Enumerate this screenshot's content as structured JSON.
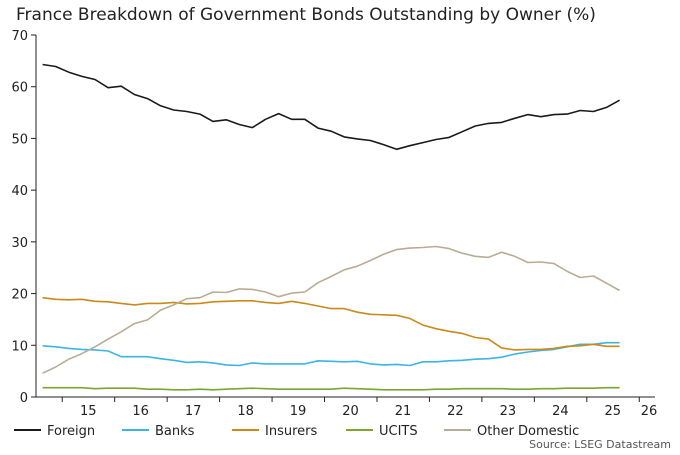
{
  "chart_data": {
    "type": "line",
    "title": "France Breakdown of Government Bonds Outstanding by Owner (%)",
    "source": "Source: LSEG Datastream",
    "xlabel": "",
    "ylabel": "",
    "ylim": [
      0,
      70
    ],
    "yticks": [
      0,
      10,
      20,
      30,
      40,
      50,
      60,
      70
    ],
    "xlim": [
      2014.5,
      2026.3
    ],
    "xticks": [
      {
        "label": "15",
        "value": 2015
      },
      {
        "label": "16",
        "value": 2016
      },
      {
        "label": "17",
        "value": 2017
      },
      {
        "label": "18",
        "value": 2018
      },
      {
        "label": "19",
        "value": 2019
      },
      {
        "label": "20",
        "value": 2020
      },
      {
        "label": "21",
        "value": 2021
      },
      {
        "label": "22",
        "value": 2022
      },
      {
        "label": "23",
        "value": 2023
      },
      {
        "label": "24",
        "value": 2024
      },
      {
        "label": "25",
        "value": 2025
      },
      {
        "label": "26",
        "value": 2026
      }
    ],
    "grid": false,
    "legend_position": "bottom",
    "x": [
      2014.625,
      2014.875,
      2015.125,
      2015.375,
      2015.625,
      2015.875,
      2016.125,
      2016.375,
      2016.625,
      2016.875,
      2017.125,
      2017.375,
      2017.625,
      2017.875,
      2018.125,
      2018.375,
      2018.625,
      2018.875,
      2019.125,
      2019.375,
      2019.625,
      2019.875,
      2020.125,
      2020.375,
      2020.625,
      2020.875,
      2021.125,
      2021.375,
      2021.625,
      2021.875,
      2022.125,
      2022.375,
      2022.625,
      2022.875,
      2023.125,
      2023.375,
      2023.625,
      2023.875,
      2024.125,
      2024.375,
      2024.625,
      2024.875,
      2025.125,
      2025.375,
      2025.625
    ],
    "series": [
      {
        "name": "Foreign",
        "color": "#1a1a1a",
        "values": [
          64.3,
          63.9,
          62.8,
          62.0,
          61.4,
          59.8,
          60.1,
          58.5,
          57.7,
          56.3,
          55.5,
          55.2,
          54.7,
          53.3,
          53.6,
          52.7,
          52.1,
          53.7,
          54.8,
          53.7,
          53.7,
          52.0,
          51.4,
          50.3,
          49.9,
          49.6,
          48.8,
          47.9,
          48.6,
          49.2,
          49.8,
          50.2,
          51.3,
          52.4,
          52.9,
          53.1,
          53.9,
          54.6,
          54.2,
          54.6,
          54.7,
          55.4,
          55.2,
          56.0,
          57.4
        ]
      },
      {
        "name": "Banks",
        "color": "#3db4e6",
        "values": [
          9.9,
          9.7,
          9.4,
          9.2,
          9.1,
          8.9,
          7.8,
          7.8,
          7.8,
          7.4,
          7.1,
          6.7,
          6.8,
          6.6,
          6.2,
          6.1,
          6.6,
          6.4,
          6.4,
          6.4,
          6.4,
          7.0,
          6.9,
          6.8,
          6.9,
          6.4,
          6.2,
          6.3,
          6.1,
          6.8,
          6.8,
          7.0,
          7.1,
          7.3,
          7.4,
          7.7,
          8.3,
          8.7,
          9.0,
          9.2,
          9.7,
          10.2,
          10.2,
          10.5,
          10.5
        ]
      },
      {
        "name": "Insurers",
        "color": "#c98a1a",
        "values": [
          19.2,
          18.9,
          18.8,
          18.9,
          18.5,
          18.4,
          18.1,
          17.8,
          18.1,
          18.1,
          18.3,
          18.0,
          18.1,
          18.4,
          18.5,
          18.6,
          18.6,
          18.3,
          18.1,
          18.5,
          18.1,
          17.6,
          17.1,
          17.1,
          16.4,
          16.0,
          15.9,
          15.8,
          15.2,
          13.9,
          13.2,
          12.7,
          12.3,
          11.5,
          11.2,
          9.5,
          9.1,
          9.2,
          9.2,
          9.4,
          9.8,
          9.9,
          10.2,
          9.8,
          9.8
        ]
      },
      {
        "name": "UCITS",
        "color": "#7da630",
        "values": [
          1.8,
          1.8,
          1.8,
          1.8,
          1.6,
          1.7,
          1.7,
          1.7,
          1.5,
          1.5,
          1.4,
          1.4,
          1.5,
          1.4,
          1.5,
          1.6,
          1.7,
          1.6,
          1.5,
          1.5,
          1.5,
          1.5,
          1.5,
          1.7,
          1.6,
          1.5,
          1.4,
          1.4,
          1.4,
          1.4,
          1.5,
          1.5,
          1.6,
          1.6,
          1.6,
          1.6,
          1.5,
          1.5,
          1.6,
          1.6,
          1.7,
          1.7,
          1.7,
          1.8,
          1.8
        ]
      },
      {
        "name": "Other Domestic",
        "color": "#b8ad94",
        "values": [
          4.6,
          5.8,
          7.3,
          8.4,
          9.7,
          11.2,
          12.6,
          14.2,
          14.9,
          16.8,
          17.8,
          19.0,
          19.2,
          20.3,
          20.2,
          20.9,
          20.8,
          20.3,
          19.4,
          20.1,
          20.3,
          22.1,
          23.3,
          24.6,
          25.3,
          26.4,
          27.6,
          28.5,
          28.8,
          28.9,
          29.1,
          28.7,
          27.8,
          27.2,
          27.0,
          28.0,
          27.2,
          26.0,
          26.1,
          25.8,
          24.3,
          23.1,
          23.4,
          22.0,
          20.6
        ]
      }
    ]
  }
}
